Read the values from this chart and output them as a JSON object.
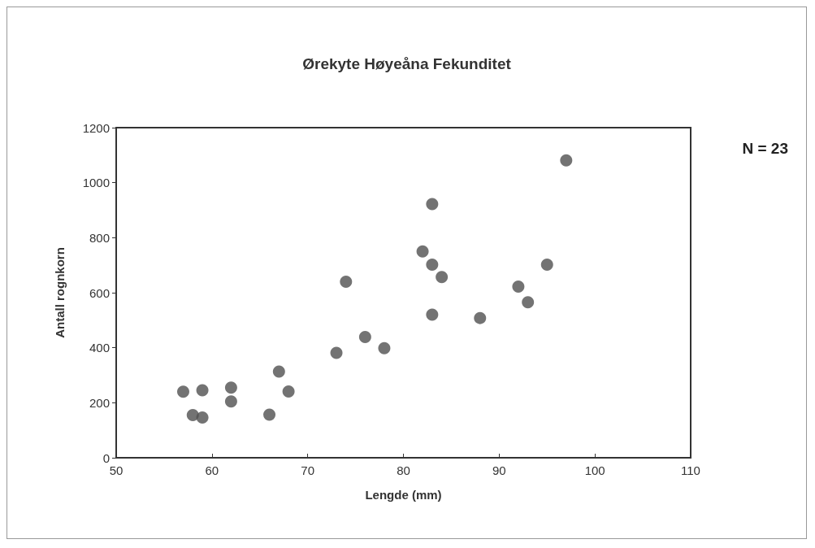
{
  "chart_data": {
    "type": "scatter",
    "title": "Ørekyte Høyeåna Fekunditet",
    "xlabel": "Lengde (mm)",
    "ylabel": "Antall rognkorn",
    "annotations": [
      "N = 23"
    ],
    "x": [
      57,
      58,
      59,
      59,
      62,
      62,
      66,
      67,
      68,
      73,
      74,
      76,
      78,
      83,
      82,
      83,
      84,
      83,
      88,
      92,
      93,
      95,
      97
    ],
    "series": [
      {
        "color": "#505050",
        "values": [
          240,
          155,
          245,
          146,
          255,
          205,
          157,
          313,
          241,
          381,
          640,
          439,
          398,
          922,
          750,
          702,
          657,
          520,
          508,
          622,
          565,
          702,
          1081
        ]
      }
    ],
    "xlim": [
      50,
      110
    ],
    "xticks": [
      50,
      60,
      70,
      80,
      90,
      100,
      110
    ],
    "ylim": [
      0,
      1200
    ],
    "yticks": [
      0,
      200,
      400,
      600,
      800,
      1000,
      1200
    ],
    "grid": false,
    "marker": "circle"
  }
}
